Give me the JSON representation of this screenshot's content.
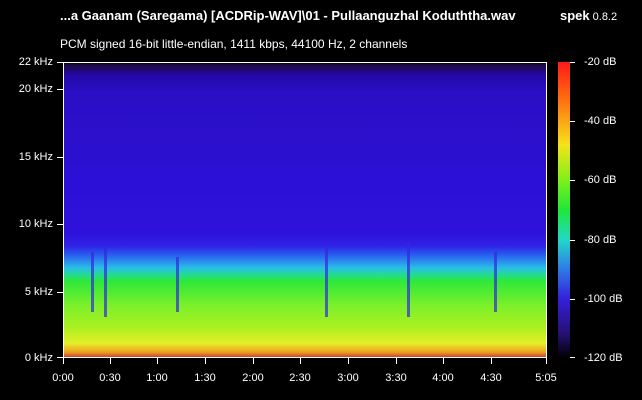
{
  "header": {
    "file_title": "...a Gaanam (Saregama) [ACDRip-WAV]\\01 - Pullaanguzhal Koduththa.wav",
    "app_name": "spek",
    "app_version": "0.8.2",
    "audio_info": "PCM signed 16-bit little-endian, 1411 kbps, 44100 Hz, 2 channels"
  },
  "frequency_axis": {
    "labels": [
      "22 kHz",
      "20 kHz",
      "15 kHz",
      "10 kHz",
      "5 kHz",
      "0 kHz"
    ]
  },
  "time_axis": {
    "labels": [
      "0:00",
      "0:30",
      "1:00",
      "1:30",
      "2:00",
      "2:30",
      "3:00",
      "3:30",
      "4:00",
      "4:30",
      "5:05"
    ]
  },
  "db_scale": {
    "labels": [
      "-20 dB",
      "-40 dB",
      "-60 dB",
      "-80 dB",
      "-100 dB",
      "-120 dB"
    ]
  },
  "colors": {
    "background": "#000000",
    "text": "#ffffff",
    "spectrum_top": "#2d10d6",
    "spectrum_bottom": "#c0303a"
  }
}
